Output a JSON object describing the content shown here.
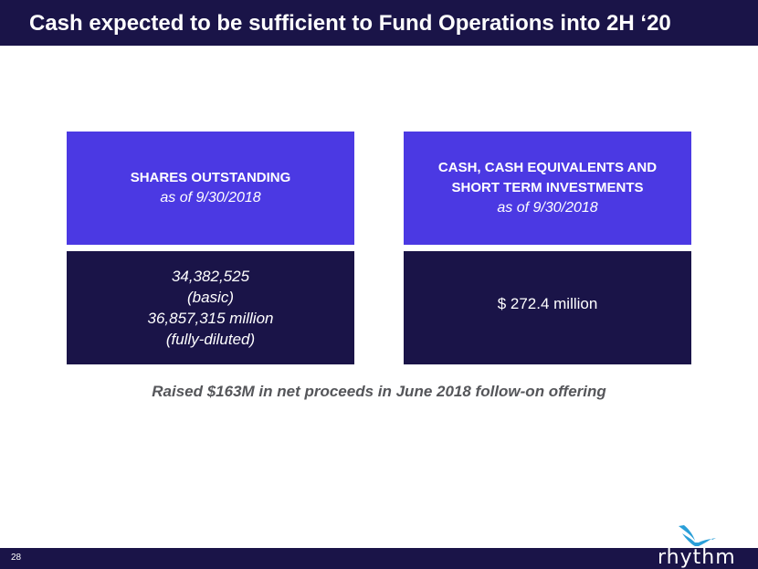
{
  "slide": {
    "title": "Cash expected to be sufficient to Fund Operations into 2H ‘20",
    "page_number": "28",
    "note": "Raised $163M in net proceeds in June 2018 follow-on offering"
  },
  "shares": {
    "heading": "SHARES OUTSTANDING",
    "asof": "as of 9/30/2018",
    "basic_value": "34,382,525",
    "basic_label": "(basic)",
    "diluted_value": "36,857,315 million",
    "diluted_label": "(fully-diluted)"
  },
  "cash": {
    "heading_line1": "CASH, CASH EQUIVALENTS AND",
    "heading_line2": "SHORT TERM INVESTMENTS",
    "asof": "as of 9/30/2018",
    "value": "$ 272.4 million"
  },
  "logo": {
    "wordmark": "rhythm",
    "icon": "hummingbird-icon"
  },
  "colors": {
    "navy": "#1a1448",
    "accent_purple": "#4b39e3",
    "bird_blue": "#2a9fd8",
    "note_gray": "#55565a"
  }
}
